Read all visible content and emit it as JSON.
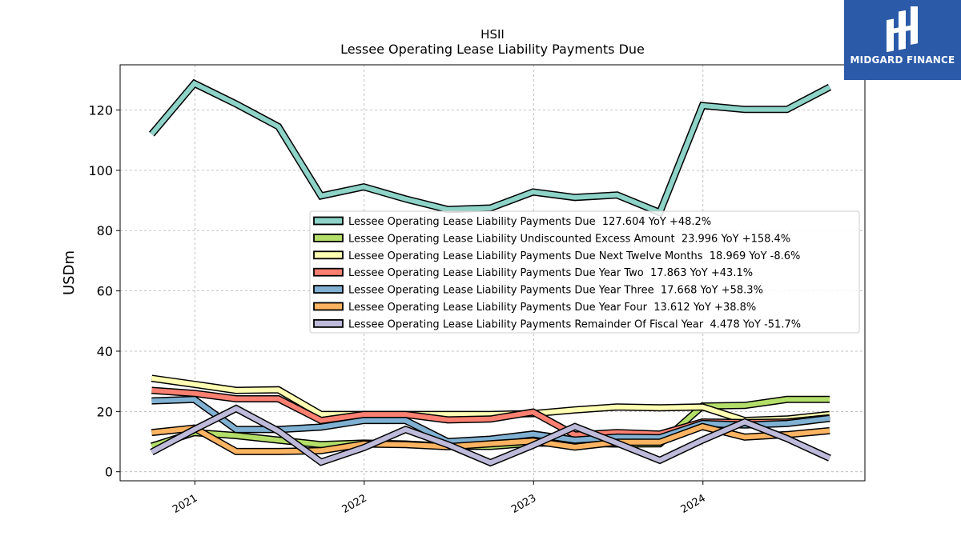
{
  "chart_data": {
    "type": "line",
    "title": "HSII",
    "subtitle": "Lessee Operating Lease Liability Payments Due",
    "xlabel": "",
    "ylabel": "USDm",
    "xlim": [
      "2020-07-24",
      "2024-12-15"
    ],
    "ylim": [
      -3,
      135
    ],
    "yticks": [
      0,
      20,
      40,
      60,
      80,
      100,
      120
    ],
    "xticks": [
      {
        "date": "2021-01-01",
        "label": "2021"
      },
      {
        "date": "2022-01-01",
        "label": "2022"
      },
      {
        "date": "2023-01-01",
        "label": "2023"
      },
      {
        "date": "2024-01-01",
        "label": "2024"
      }
    ],
    "grid": true,
    "legend_position": "center-right",
    "x": [
      "2020-09-30",
      "2020-12-31",
      "2021-03-31",
      "2021-06-30",
      "2021-09-30",
      "2021-12-31",
      "2022-03-31",
      "2022-06-30",
      "2022-09-30",
      "2022-12-31",
      "2023-03-31",
      "2023-06-30",
      "2023-09-30",
      "2023-12-31",
      "2024-03-31",
      "2024-06-30",
      "2024-09-30"
    ],
    "series": [
      {
        "name": "Lessee Operating Lease Liability Payments Due",
        "legend": "Lessee Operating Lease Liability Payments Due  127.604 YoY +48.2%",
        "color": "#8dd3c7",
        "values": [
          112,
          128.8,
          122,
          114.5,
          91.5,
          94.5,
          90.5,
          87,
          87.5,
          92.8,
          91,
          91.8,
          86,
          121.5,
          120.2,
          120.2,
          127.6
        ]
      },
      {
        "name": "Lessee Operating Lease Liability Undiscounted Excess Amount",
        "legend": "Lessee Operating Lease Liability Undiscounted Excess Amount  23.996 YoY +158.4%",
        "color": "#b3de69",
        "values": [
          8.5,
          13,
          12,
          10.5,
          9,
          9.5,
          9.2,
          8.5,
          8.4,
          9.5,
          9.5,
          9.2,
          9.3,
          21.8,
          22,
          24,
          24
        ]
      },
      {
        "name": "Lessee Operating Lease Liability Payments Due Next Twelve Months",
        "legend": "Lessee Operating Lease Liability Payments Due Next Twelve Months  18.969 YoY -8.6%",
        "color": "#ffffb3",
        "values": [
          31,
          29,
          27,
          27.2,
          19,
          19,
          19,
          19,
          19,
          19.3,
          20.5,
          21.5,
          21.2,
          21.5,
          17,
          17.5,
          19
        ]
      },
      {
        "name": "Lessee Operating Lease Liability Payments Due Year Two",
        "legend": "Lessee Operating Lease Liability Payments Due Year Two  17.863 YoY +43.1%",
        "color": "#fb8072",
        "values": [
          27,
          26,
          24.2,
          24.2,
          17,
          19,
          19,
          17.2,
          17.5,
          19.8,
          12.2,
          13,
          12.5,
          16.5,
          16.3,
          16.5,
          17.9
        ]
      },
      {
        "name": "Lessee Operating Lease Liability Payments Due Year Three",
        "legend": "Lessee Operating Lease Liability Payments Due Year Three  17.668 YoY +58.3%",
        "color": "#80b1d3",
        "values": [
          23.5,
          24,
          14,
          14,
          14.8,
          17,
          17,
          10,
          10.8,
          12.5,
          10.5,
          11.5,
          11.3,
          16,
          15.5,
          16,
          17.7
        ]
      },
      {
        "name": "Lessee Operating Lease Liability Payments Due Year Four",
        "legend": "Lessee Operating Lease Liability Payments Due Year Four  13.612 YoY +38.8%",
        "color": "#fdb462",
        "values": [
          13,
          14.5,
          6.7,
          6.7,
          7,
          9.2,
          9,
          8.3,
          9.3,
          10.2,
          8.2,
          9.8,
          9.8,
          15,
          11.5,
          12.3,
          13.6
        ]
      },
      {
        "name": "Lessee Operating Lease Liability Payments Remainder Of Fiscal Year",
        "legend": "Lessee Operating Lease Liability Payments Remainder Of Fiscal Year  4.478 YoY -51.7%",
        "color": "#bebada",
        "values": [
          6.5,
          14,
          21,
          13.5,
          3.2,
          8,
          14,
          9,
          3,
          8.8,
          15,
          9.5,
          3.8,
          10.5,
          16.5,
          11,
          4.5
        ]
      }
    ]
  },
  "logo": {
    "text": "MIDGARD FINANCE"
  }
}
